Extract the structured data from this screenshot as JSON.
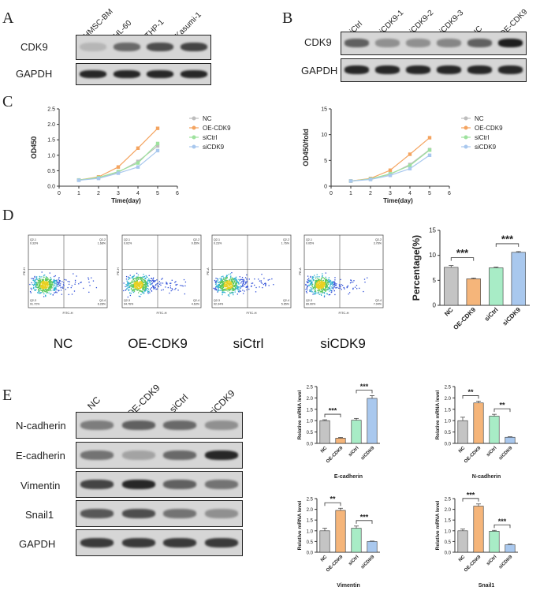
{
  "panels": {
    "A": "A",
    "B": "B",
    "C": "C",
    "D": "D",
    "E": "E"
  },
  "blotA": {
    "lanes": [
      "HMSC-BM",
      "HL-60",
      "THP-1",
      "Kasumi-1"
    ],
    "rows": [
      "CDK9",
      "GAPDH"
    ],
    "cdk9_intensity": [
      0.15,
      0.55,
      0.7,
      0.75
    ],
    "gapdh_intensity": [
      0.9,
      0.9,
      0.9,
      0.9
    ]
  },
  "blotB": {
    "lanes": [
      "siCtrl",
      "siCDK9-1",
      "siCDK9-2",
      "siCDK9-3",
      "NC",
      "OE-CDK9"
    ],
    "rows": [
      "CDK9",
      "GAPDH"
    ],
    "cdk9_intensity": [
      0.6,
      0.35,
      0.35,
      0.4,
      0.6,
      0.95
    ],
    "gapdh_intensity": [
      0.9,
      0.9,
      0.9,
      0.9,
      0.9,
      0.9
    ]
  },
  "chart_data": [
    {
      "type": "line",
      "ylabel": "OD450",
      "xlabel": "Time(day)",
      "x": [
        1,
        2,
        3,
        4,
        5
      ],
      "xlim": [
        0,
        6
      ],
      "ylim": [
        0,
        2.5
      ],
      "xticks": [
        "0",
        "1",
        "2",
        "3",
        "4",
        "5",
        "6"
      ],
      "yticks": [
        "0.0",
        "0.5",
        "1.0",
        "1.5",
        "2.0",
        "2.5"
      ],
      "series": [
        {
          "name": "NC",
          "color": "#bdbdbd",
          "values": [
            0.2,
            0.27,
            0.45,
            0.8,
            1.3
          ]
        },
        {
          "name": "OE-CDK9",
          "color": "#f4a460",
          "values": [
            0.2,
            0.3,
            0.62,
            1.23,
            1.87
          ]
        },
        {
          "name": "siCtrl",
          "color": "#9ee29e",
          "values": [
            0.2,
            0.28,
            0.47,
            0.75,
            1.38
          ]
        },
        {
          "name": "siCDK9",
          "color": "#a9c8ee",
          "values": [
            0.19,
            0.25,
            0.42,
            0.62,
            1.15
          ]
        }
      ]
    },
    {
      "type": "line",
      "ylabel": "OD450/fold",
      "xlabel": "Time(day)",
      "x": [
        1,
        2,
        3,
        4,
        5
      ],
      "xlim": [
        0,
        6
      ],
      "ylim": [
        0,
        15
      ],
      "xticks": [
        "0",
        "1",
        "2",
        "3",
        "4",
        "5",
        "6"
      ],
      "yticks": [
        "0",
        "5",
        "10",
        "15"
      ],
      "series": [
        {
          "name": "NC",
          "color": "#bdbdbd",
          "values": [
            1,
            1.4,
            2.3,
            4.2,
            7.1
          ]
        },
        {
          "name": "OE-CDK9",
          "color": "#f4a460",
          "values": [
            1,
            1.5,
            3.1,
            6.2,
            9.4
          ]
        },
        {
          "name": "siCtrl",
          "color": "#9ee29e",
          "values": [
            1,
            1.4,
            2.4,
            4.0,
            7.0
          ]
        },
        {
          "name": "siCDK9",
          "color": "#a9c8ee",
          "values": [
            1,
            1.3,
            2.1,
            3.4,
            6.0
          ]
        }
      ]
    },
    {
      "type": "bar",
      "ylabel": "Percentage(%)",
      "categories": [
        "NC",
        "OE-CDK9",
        "siCtrl",
        "siCDK9"
      ],
      "values": [
        7.6,
        5.3,
        7.5,
        10.6
      ],
      "errors": [
        0.35,
        0.15,
        0.15,
        0.15
      ],
      "colors": [
        "#c4c4c4",
        "#f5b57a",
        "#a8ecc6",
        "#a9c8ee"
      ],
      "ylim": [
        0,
        15
      ],
      "yticks": [
        "0",
        "5",
        "10",
        "15"
      ],
      "sig": [
        {
          "pair": [
            0,
            1
          ],
          "label": "***"
        },
        {
          "pair": [
            2,
            3
          ],
          "label": "***"
        }
      ]
    },
    {
      "type": "bar",
      "xlabel": "E-cadherin",
      "ylabel": "Relative mRNA level",
      "categories": [
        "NC",
        "OE-CDK9",
        "siCtrl",
        "siCDK9"
      ],
      "values": [
        1.0,
        0.23,
        1.02,
        1.98
      ],
      "errors": [
        0.04,
        0.03,
        0.08,
        0.12
      ],
      "colors": [
        "#c4c4c4",
        "#f5b57a",
        "#a8ecc6",
        "#a9c8ee"
      ],
      "ylim": [
        0,
        2.5
      ],
      "yticks": [
        "0.0",
        "0.5",
        "1.0",
        "1.5",
        "2.0",
        "2.5"
      ],
      "sig": [
        {
          "pair": [
            0,
            1
          ],
          "label": "***"
        },
        {
          "pair": [
            2,
            3
          ],
          "label": "***"
        }
      ]
    },
    {
      "type": "bar",
      "xlabel": "N-cadherin",
      "ylabel": "Relative mRNA level",
      "categories": [
        "NC",
        "OE-CDK9",
        "siCtrl",
        "siCDK9"
      ],
      "values": [
        1.0,
        1.78,
        1.2,
        0.27
      ],
      "errors": [
        0.15,
        0.08,
        0.08,
        0.02
      ],
      "colors": [
        "#c4c4c4",
        "#f5b57a",
        "#a8ecc6",
        "#a9c8ee"
      ],
      "ylim": [
        0,
        2.5
      ],
      "yticks": [
        "0.0",
        "0.5",
        "1.0",
        "1.5",
        "2.0",
        "2.5"
      ],
      "sig": [
        {
          "pair": [
            0,
            1
          ],
          "label": "**"
        },
        {
          "pair": [
            2,
            3
          ],
          "label": "**"
        }
      ]
    },
    {
      "type": "bar",
      "xlabel": "Vimentin",
      "ylabel": "Relative mRNA level",
      "categories": [
        "NC",
        "OE-CDK9",
        "siCtrl",
        "siCDK9"
      ],
      "values": [
        1.0,
        1.95,
        1.12,
        0.5
      ],
      "errors": [
        0.12,
        0.1,
        0.1,
        0.02
      ],
      "colors": [
        "#c4c4c4",
        "#f5b57a",
        "#a8ecc6",
        "#a9c8ee"
      ],
      "ylim": [
        0,
        2.5
      ],
      "yticks": [
        "0.0",
        "0.5",
        "1.0",
        "1.5",
        "2.0",
        "2.5"
      ],
      "sig": [
        {
          "pair": [
            0,
            1
          ],
          "label": "**"
        },
        {
          "pair": [
            2,
            3
          ],
          "label": "***"
        }
      ]
    },
    {
      "type": "bar",
      "xlabel": "Snail1",
      "ylabel": "Relative mRNA level",
      "categories": [
        "NC",
        "OE-CDK9",
        "siCtrl",
        "siCDK9"
      ],
      "values": [
        1.0,
        2.15,
        0.98,
        0.35
      ],
      "errors": [
        0.08,
        0.1,
        0.04,
        0.03
      ],
      "colors": [
        "#c4c4c4",
        "#f5b57a",
        "#a8ecc6",
        "#a9c8ee"
      ],
      "ylim": [
        0,
        2.5
      ],
      "yticks": [
        "0.0",
        "0.5",
        "1.0",
        "1.5",
        "2.0",
        "2.5"
      ],
      "sig": [
        {
          "pair": [
            0,
            1
          ],
          "label": "***"
        },
        {
          "pair": [
            2,
            3
          ],
          "label": "***"
        }
      ]
    }
  ],
  "flow": {
    "captions": [
      "NC",
      "OE-CDK9",
      "siCtrl",
      "siCDK9"
    ],
    "x_axis": "FITC-H",
    "y_axis": [
      "PE-H",
      "PE-H",
      "PE-A",
      "PE-A"
    ],
    "quadrants": [
      [
        "Q2-1\n0.33%",
        "Q2-2\n1.68%",
        "Q2-3\n91.72%",
        "Q2-4\n6.28%"
      ],
      [
        "Q2-1\n0.02%",
        "Q2-2\n0.65%",
        "Q2-3\n94.76%",
        "Q2-4\n4.63%"
      ],
      [
        "Q2-1\n0.23%",
        "Q2-2\n1.76%",
        "Q2-3\n92.34%",
        "Q2-4\n5.65%"
      ],
      [
        "Q2-1\n0.05%",
        "Q2-2\n3.76%",
        "Q2-3\n89.00%",
        "Q2-4\n7.04%"
      ]
    ]
  },
  "blotE": {
    "lanes": [
      "NC",
      "OE-CDK9",
      "siCtrl",
      "siCDK9"
    ],
    "rows": [
      "N-cadherin",
      "E-cadherin",
      "Vimentin",
      "Snail1",
      "GAPDH"
    ],
    "intensity": [
      [
        0.45,
        0.6,
        0.55,
        0.35
      ],
      [
        0.5,
        0.25,
        0.55,
        0.9
      ],
      [
        0.75,
        0.9,
        0.6,
        0.5
      ],
      [
        0.65,
        0.7,
        0.5,
        0.35
      ],
      [
        0.8,
        0.8,
        0.8,
        0.8
      ]
    ]
  }
}
